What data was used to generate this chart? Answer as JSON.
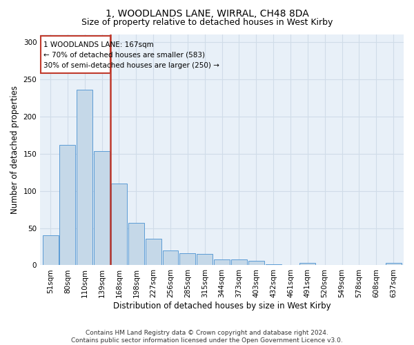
{
  "title": "1, WOODLANDS LANE, WIRRAL, CH48 8DA",
  "subtitle": "Size of property relative to detached houses in West Kirby",
  "xlabel": "Distribution of detached houses by size in West Kirby",
  "ylabel": "Number of detached properties",
  "categories": [
    "51sqm",
    "80sqm",
    "110sqm",
    "139sqm",
    "168sqm",
    "198sqm",
    "227sqm",
    "256sqm",
    "285sqm",
    "315sqm",
    "344sqm",
    "373sqm",
    "403sqm",
    "432sqm",
    "461sqm",
    "491sqm",
    "520sqm",
    "549sqm",
    "578sqm",
    "608sqm",
    "637sqm"
  ],
  "values": [
    40,
    162,
    236,
    153,
    110,
    57,
    36,
    20,
    16,
    15,
    8,
    8,
    6,
    1,
    0,
    3,
    0,
    0,
    0,
    0,
    3
  ],
  "bar_color": "#c5d8e8",
  "bar_edge_color": "#5b9bd5",
  "vline_color": "#c0392b",
  "annotation_line1": "1 WOODLANDS LANE: 167sqm",
  "annotation_line2": "← 70% of detached houses are smaller (583)",
  "annotation_line3": "30% of semi-detached houses are larger (250) →",
  "annotation_box_color": "#c0392b",
  "ylim": [
    0,
    310
  ],
  "yticks": [
    0,
    50,
    100,
    150,
    200,
    250,
    300
  ],
  "grid_color": "#d0dce8",
  "bg_color": "#e8f0f8",
  "footer": "Contains HM Land Registry data © Crown copyright and database right 2024.\nContains public sector information licensed under the Open Government Licence v3.0.",
  "title_fontsize": 10,
  "subtitle_fontsize": 9,
  "xlabel_fontsize": 8.5,
  "ylabel_fontsize": 8.5,
  "footer_fontsize": 6.5,
  "tick_fontsize": 7.5,
  "annot_fontsize": 7.5
}
